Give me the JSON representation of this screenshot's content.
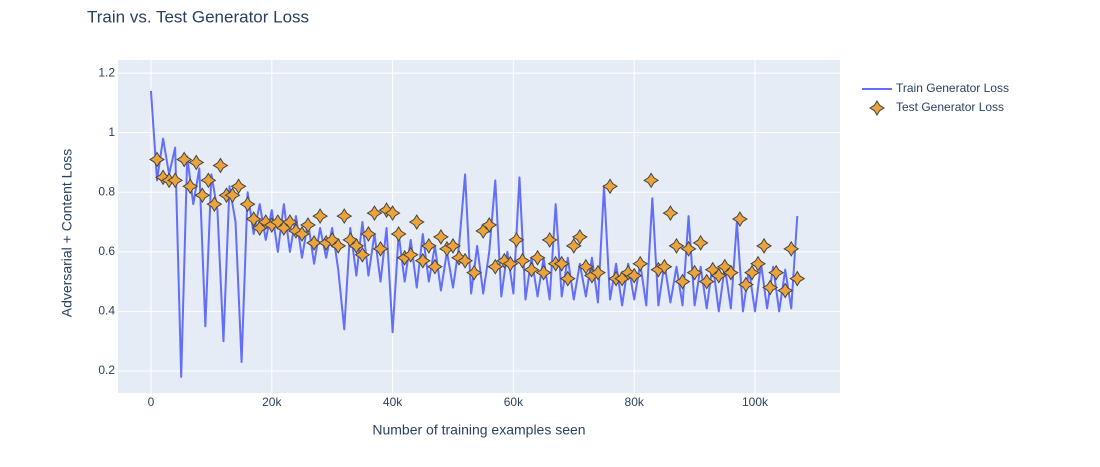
{
  "chart_data": {
    "type": "line",
    "title": "Train vs. Test Generator Loss",
    "xlabel": "Number of training examples seen",
    "ylabel": "Adversarial + Content Loss",
    "xlim": [
      -5460,
      114070
    ],
    "ylim": [
      0.126,
      1.244
    ],
    "xticks": [
      0,
      {
        "value": 20000,
        "label": "20k"
      },
      {
        "value": 40000,
        "label": "40k"
      },
      {
        "value": 60000,
        "label": "60k"
      },
      {
        "value": 80000,
        "label": "80k"
      },
      {
        "value": 100000,
        "label": "100k"
      }
    ],
    "yticks": [
      0.2,
      0.4,
      0.6,
      0.8,
      1,
      1.2
    ],
    "grid": true,
    "legend": "right",
    "series": [
      {
        "name": "Train Generator Loss",
        "color": "#636efa",
        "mode": "lines",
        "x": [
          0,
          1000,
          2000,
          3000,
          4000,
          5000,
          6000,
          7000,
          8000,
          9000,
          10000,
          11000,
          12000,
          13000,
          14000,
          15000,
          16000,
          17000,
          18000,
          19000,
          20000,
          21000,
          22000,
          23000,
          24000,
          25000,
          26000,
          27000,
          28000,
          29000,
          30000,
          31000,
          32000,
          33000,
          34000,
          35000,
          36000,
          37000,
          38000,
          39000,
          40000,
          41000,
          42000,
          43000,
          44000,
          45000,
          46000,
          47000,
          48000,
          49000,
          50000,
          51000,
          52000,
          53000,
          54000,
          55000,
          56000,
          57000,
          58000,
          59000,
          60000,
          61000,
          62000,
          63000,
          64000,
          65000,
          66000,
          67000,
          68000,
          69000,
          70000,
          71000,
          72000,
          73000,
          74000,
          75000,
          76000,
          77000,
          78000,
          79000,
          80000,
          81000,
          82000,
          83000,
          84000,
          85000,
          86000,
          87000,
          88000,
          89000,
          90000,
          91000,
          92000,
          93000,
          94000,
          95000,
          96000,
          97000,
          98000,
          99000,
          100000,
          101000,
          102000,
          103000,
          104000,
          105000,
          106000,
          107000
        ],
        "values": [
          1.14,
          0.84,
          0.98,
          0.86,
          0.95,
          0.18,
          0.92,
          0.76,
          0.88,
          0.35,
          0.86,
          0.74,
          0.3,
          0.82,
          0.7,
          0.23,
          0.8,
          0.66,
          0.76,
          0.64,
          0.74,
          0.6,
          0.76,
          0.6,
          0.72,
          0.58,
          0.7,
          0.56,
          0.68,
          0.58,
          0.68,
          0.54,
          0.34,
          0.68,
          0.52,
          0.7,
          0.52,
          0.66,
          0.5,
          0.68,
          0.33,
          0.66,
          0.5,
          0.64,
          0.48,
          0.66,
          0.5,
          0.62,
          0.47,
          0.6,
          0.48,
          0.62,
          0.86,
          0.46,
          0.62,
          0.46,
          0.6,
          0.84,
          0.45,
          0.6,
          0.46,
          0.85,
          0.44,
          0.58,
          0.45,
          0.58,
          0.44,
          0.76,
          0.45,
          0.58,
          0.44,
          0.56,
          0.45,
          0.58,
          0.43,
          0.82,
          0.44,
          0.56,
          0.42,
          0.56,
          0.44,
          0.56,
          0.42,
          0.78,
          0.42,
          0.56,
          0.43,
          0.55,
          0.42,
          0.72,
          0.42,
          0.55,
          0.41,
          0.56,
          0.4,
          0.55,
          0.41,
          0.7,
          0.4,
          0.54,
          0.4,
          0.56,
          0.41,
          0.55,
          0.4,
          0.54,
          0.41,
          0.72
        ]
      },
      {
        "name": "Test Generator Loss",
        "color": "#eca33a",
        "mode": "markers",
        "x": [
          1000,
          2000,
          3000,
          4000,
          5500,
          6500,
          7500,
          8500,
          9500,
          10500,
          11500,
          12500,
          13500,
          14500,
          16000,
          17000,
          18000,
          19000,
          20000,
          21000,
          22000,
          23000,
          24000,
          25000,
          26000,
          27000,
          28000,
          29000,
          30000,
          31000,
          32000,
          33000,
          34000,
          35000,
          36000,
          37000,
          38000,
          39000,
          40000,
          41000,
          42000,
          43000,
          44000,
          45000,
          46000,
          47000,
          48000,
          49000,
          50000,
          51000,
          52000,
          53500,
          55000,
          56000,
          57000,
          58500,
          59500,
          60500,
          61500,
          63000,
          64000,
          65000,
          66000,
          67000,
          68000,
          69000,
          70000,
          71000,
          72000,
          73000,
          74000,
          76000,
          77000,
          78000,
          79000,
          80000,
          81000,
          82800,
          84000,
          85000,
          86000,
          87000,
          88000,
          89000,
          90000,
          91000,
          92000,
          93000,
          94000,
          95000,
          96000,
          97500,
          98500,
          99500,
          100500,
          101500,
          102500,
          103500,
          105000,
          106000,
          107000
        ],
        "values": [
          0.91,
          0.85,
          0.84,
          0.84,
          0.91,
          0.82,
          0.9,
          0.79,
          0.84,
          0.76,
          0.89,
          0.79,
          0.79,
          0.82,
          0.76,
          0.71,
          0.68,
          0.7,
          0.69,
          0.7,
          0.68,
          0.7,
          0.67,
          0.66,
          0.69,
          0.63,
          0.72,
          0.63,
          0.64,
          0.62,
          0.72,
          0.64,
          0.62,
          0.59,
          0.66,
          0.73,
          0.61,
          0.74,
          0.73,
          0.66,
          0.58,
          0.59,
          0.7,
          0.57,
          0.62,
          0.55,
          0.65,
          0.61,
          0.62,
          0.58,
          0.57,
          0.53,
          0.67,
          0.69,
          0.55,
          0.57,
          0.56,
          0.64,
          0.57,
          0.54,
          0.58,
          0.53,
          0.64,
          0.56,
          0.56,
          0.51,
          0.62,
          0.65,
          0.55,
          0.52,
          0.53,
          0.82,
          0.51,
          0.51,
          0.53,
          0.52,
          0.56,
          0.84,
          0.54,
          0.55,
          0.73,
          0.62,
          0.5,
          0.61,
          0.53,
          0.63,
          0.5,
          0.54,
          0.52,
          0.55,
          0.53,
          0.71,
          0.49,
          0.53,
          0.56,
          0.62,
          0.48,
          0.53,
          0.47,
          0.61,
          0.51
        ]
      }
    ]
  }
}
